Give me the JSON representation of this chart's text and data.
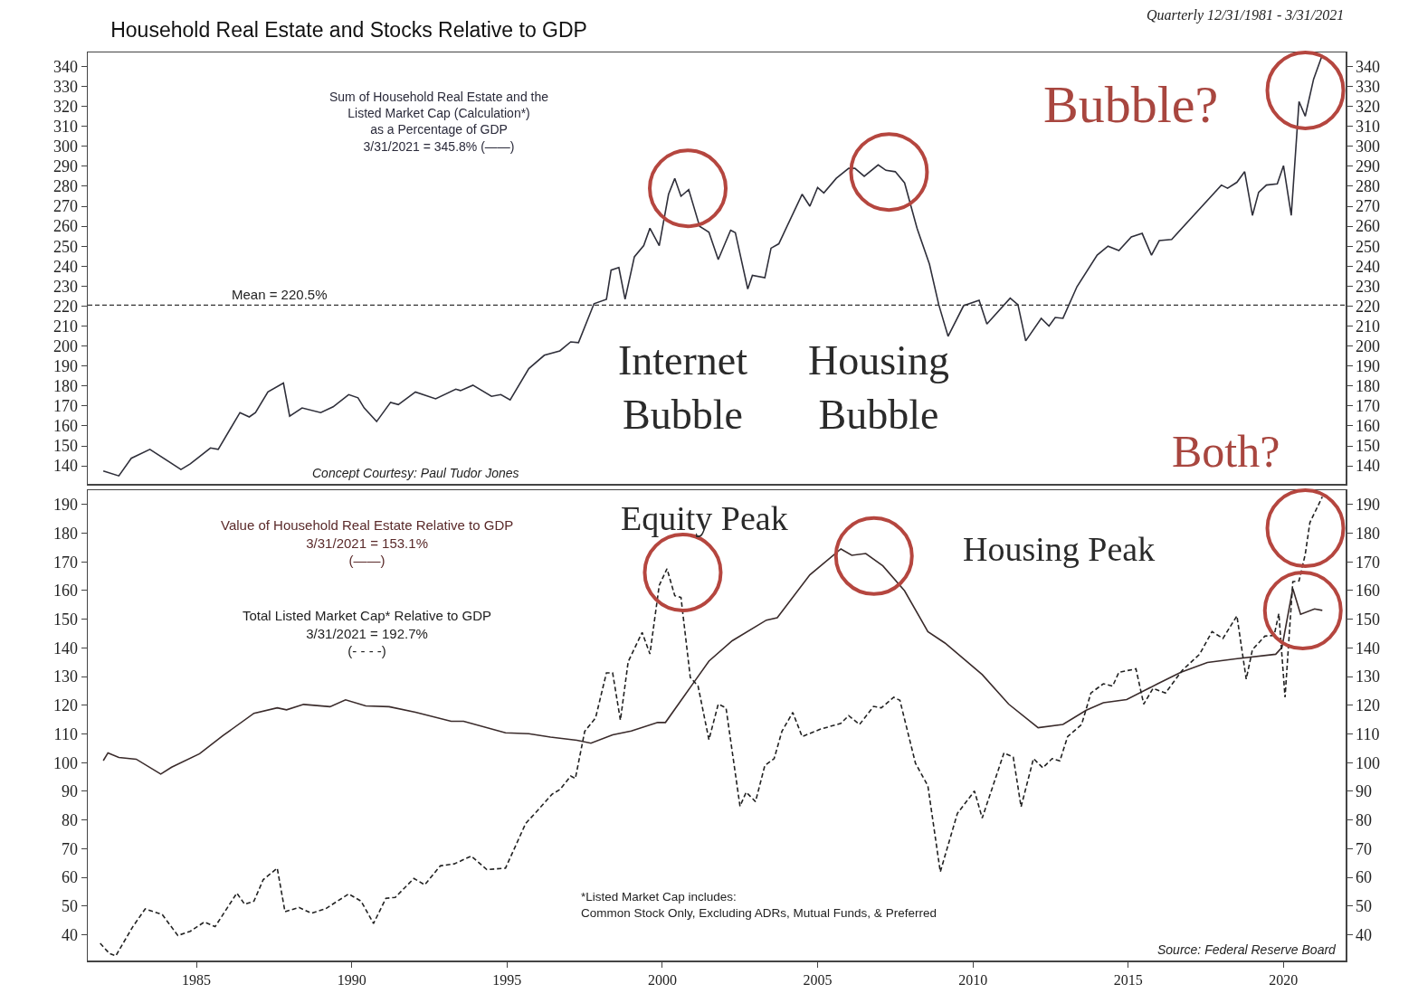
{
  "chart_data": [
    {
      "type": "line",
      "title": "Household Real Estate and Stocks Relative to GDP",
      "subtitle": "Quarterly 12/31/1981 - 3/31/2021",
      "tick_labels": "y",
      "xlim": [
        1981.5,
        2022.0
      ],
      "ylim": [
        131,
        347
      ],
      "yticks": [
        140,
        150,
        160,
        170,
        180,
        190,
        200,
        210,
        220,
        230,
        240,
        250,
        260,
        270,
        280,
        290,
        300,
        310,
        320,
        330,
        340
      ],
      "y2lim": [
        131,
        347
      ],
      "y2ticks": [
        140,
        150,
        160,
        170,
        180,
        190,
        200,
        210,
        220,
        230,
        240,
        250,
        260,
        270,
        280,
        290,
        300,
        310,
        320,
        330,
        340
      ],
      "ref_lines": [
        {
          "axis": "y",
          "value": 220.5,
          "label": "Mean = 220.5%",
          "line_style": "dashed",
          "color": "#333333"
        }
      ],
      "annotations": [
        "Sum of Household Real Estate and the\nListed Market Cap (Calculation*)\nas a Percentage of GDP\n3/31/2021 = 345.8% (——)",
        "Concept Courtesy: Paul Tudor Jones",
        "Internet\nBubble",
        "Housing\nBubble",
        "Bubble?",
        "Both?"
      ],
      "series": [
        {
          "color": "#2f2f3a",
          "line_style": "solid",
          "x": [
            1982.0,
            1982.5,
            1982.9,
            1983.5,
            1984.5,
            1984.8,
            1985.45,
            1985.7,
            1986.4,
            1986.7,
            1986.9,
            1987.3,
            1987.8,
            1988.0,
            1988.4,
            1989.0,
            1989.4,
            1989.9,
            1990.2,
            1990.4,
            1990.8,
            1991.25,
            1991.5,
            1992.05,
            1992.7,
            1993.35,
            1993.5,
            1993.9,
            1994.5,
            1994.8,
            1995.1,
            1995.7,
            1996.2,
            1996.7,
            1997.05,
            1997.3,
            1997.8,
            1998.2,
            1998.35,
            1998.6,
            1998.8,
            1999.1,
            1999.4,
            1999.6,
            1999.9,
            2000.2,
            2000.4,
            2000.6,
            2000.85,
            2001.2,
            2001.5,
            2001.8,
            2002.2,
            2002.35,
            2002.75,
            2002.9,
            2003.3,
            2003.5,
            2003.75,
            2004.5,
            2004.75,
            2005.0,
            2005.2,
            2005.6,
            2006.0,
            2006.2,
            2006.5,
            2006.95,
            2007.2,
            2007.5,
            2007.8,
            2008.2,
            2008.6,
            2008.9,
            2009.2,
            2009.7,
            2010.2,
            2010.45,
            2011.2,
            2011.45,
            2011.7,
            2012.2,
            2012.45,
            2012.65,
            2012.9,
            2013.35,
            2014.0,
            2014.35,
            2014.7,
            2015.1,
            2015.45,
            2015.75,
            2016.0,
            2016.4,
            2018.0,
            2018.2,
            2018.5,
            2018.75,
            2019.0,
            2019.2,
            2019.45,
            2019.8,
            2020.0,
            2020.25,
            2020.5,
            2020.7,
            2020.97,
            2021.25
          ],
          "values": [
            137.5,
            135,
            143.8,
            148.3,
            138.2,
            141,
            149,
            148.3,
            166.7,
            164.5,
            166.7,
            177,
            181.5,
            164.9,
            169,
            166.7,
            169.6,
            175.7,
            174.1,
            169,
            162.2,
            171.8,
            170.7,
            177,
            173.6,
            178.4,
            177.7,
            180.4,
            174.8,
            175.7,
            173,
            188.7,
            195.4,
            197.6,
            202.1,
            201.7,
            221.2,
            223.4,
            238,
            239.3,
            223.4,
            244.7,
            250.3,
            259,
            250.3,
            276,
            283.9,
            275,
            278.3,
            260,
            257,
            243.3,
            258,
            256.8,
            228.6,
            235.4,
            234.2,
            249,
            251.2,
            276,
            270,
            279.4,
            276.7,
            284,
            289,
            289,
            285,
            290.7,
            288,
            287.3,
            281.7,
            259,
            241,
            220.7,
            204.9,
            220.2,
            222.9,
            211,
            224,
            220.7,
            202.6,
            213.9,
            210,
            214.3,
            213.9,
            229.7,
            245.5,
            250,
            247.8,
            254.6,
            256.4,
            245.5,
            252.8,
            253.4,
            280.6,
            279,
            282,
            287.3,
            265.4,
            277,
            280.6,
            281.2,
            290.3,
            265.4,
            322.4,
            315.1,
            333.7,
            345.8
          ]
        }
      ]
    },
    {
      "type": "line",
      "xlim": [
        1981.5,
        2022.0
      ],
      "xticks": [
        1985,
        1990,
        1995,
        2000,
        2005,
        2010,
        2015,
        2020
      ],
      "ylim": [
        31,
        195
      ],
      "yticks": [
        40,
        50,
        60,
        70,
        80,
        90,
        100,
        110,
        120,
        130,
        140,
        150,
        160,
        170,
        180,
        190
      ],
      "y2lim": [
        31,
        195
      ],
      "y2ticks": [
        40,
        50,
        60,
        70,
        80,
        90,
        100,
        110,
        120,
        130,
        140,
        150,
        160,
        170,
        180,
        190
      ],
      "annotations": [
        "Value of Household Real Estate Relative to GDP\n3/31/2021 = 153.1%\n(——)",
        "Total Listed Market Cap* Relative to GDP\n3/31/2021 = 192.7%\n(- - - -)",
        "*Listed Market Cap includes:\nCommon Stock Only, Excluding ADRs, Mutual Funds, & Preferred",
        "Source: Federal Reserve Board",
        "Equity Peak",
        "Housing Peak"
      ],
      "series": [
        {
          "color": "#3a2b2b",
          "line_style": "solid",
          "x": [
            1982.0,
            1982.15,
            1982.5,
            1983.06,
            1983.85,
            1984.2,
            1985.1,
            1985.85,
            1986.85,
            1987.6,
            1987.9,
            1988.45,
            1989.3,
            1989.8,
            1990.45,
            1991.2,
            1992.05,
            1993.2,
            1993.6,
            1994.95,
            1995.7,
            1996.4,
            1997.25,
            1997.7,
            1998.4,
            1999.0,
            1999.85,
            2000.1,
            2000.95,
            2001.5,
            2002.25,
            2003.35,
            2003.7,
            2004.75,
            2005.75,
            2006.1,
            2006.55,
            2007.1,
            2007.8,
            2008.55,
            2009.1,
            2010.3,
            2011.15,
            2012.1,
            2012.9,
            2013.65,
            2014.2,
            2014.95,
            2015.95,
            2016.7,
            2017.55,
            2018.45,
            2019.75,
            2019.95,
            2020.3,
            2020.55,
            2021.0,
            2021.25
          ],
          "values": [
            100.7,
            103.4,
            101.8,
            101.2,
            96,
            98.4,
            103.1,
            109.4,
            117.2,
            119.1,
            118.4,
            120.3,
            119.5,
            121.9,
            119.8,
            119.5,
            117.6,
            114.4,
            114.4,
            110.4,
            110.1,
            108.9,
            107.8,
            106.8,
            109.7,
            111,
            114,
            114,
            127,
            135.4,
            142.5,
            149.7,
            150.5,
            165.5,
            174.5,
            172.3,
            172.9,
            168.6,
            159.9,
            145.7,
            141.7,
            130.7,
            120.4,
            112.2,
            113.3,
            118.3,
            120.9,
            122,
            127.5,
            131.5,
            134.9,
            136.2,
            137.8,
            140.2,
            160.7,
            151.7,
            153.6,
            153.1
          ]
        },
        {
          "color": "#222222",
          "line_style": "dashed",
          "x": [
            1981.9,
            1982.2,
            1982.4,
            1982.95,
            1983.35,
            1983.9,
            1984.4,
            1984.8,
            1985.25,
            1985.6,
            1986.3,
            1986.55,
            1986.85,
            1987.15,
            1987.6,
            1987.85,
            1988.3,
            1988.7,
            1989.15,
            1989.9,
            1990.3,
            1990.7,
            1991.1,
            1991.4,
            1992.0,
            1992.35,
            1992.85,
            1993.3,
            1993.85,
            1994.35,
            1994.95,
            1995.6,
            1996.0,
            1996.45,
            1996.7,
            1997.05,
            1997.2,
            1997.5,
            1997.85,
            1998.2,
            1998.4,
            1998.65,
            1998.9,
            1999.35,
            1999.6,
            1999.9,
            2000.15,
            2000.4,
            2000.6,
            2000.9,
            2001.15,
            2001.5,
            2001.8,
            2002.05,
            2002.5,
            2002.7,
            2003.0,
            2003.3,
            2003.6,
            2003.85,
            2004.2,
            2004.5,
            2005.1,
            2005.75,
            2006.0,
            2006.35,
            2006.8,
            2007.05,
            2007.45,
            2007.65,
            2008.15,
            2008.55,
            2008.95,
            2009.5,
            2010.05,
            2010.3,
            2011.0,
            2011.3,
            2011.55,
            2011.95,
            2012.25,
            2012.55,
            2012.8,
            2013.05,
            2013.5,
            2013.8,
            2014.2,
            2014.5,
            2014.7,
            2015.25,
            2015.5,
            2015.8,
            2016.2,
            2016.75,
            2017.3,
            2017.7,
            2018.05,
            2018.5,
            2018.8,
            2019.0,
            2019.4,
            2019.7,
            2019.85,
            2020.05,
            2020.3,
            2020.5,
            2020.7,
            2020.85,
            2021.25
          ],
          "values": [
            37,
            33.4,
            32.6,
            42.8,
            49,
            47,
            39.7,
            41.2,
            44.4,
            42.8,
            54.5,
            50.6,
            51.7,
            59.2,
            63.2,
            48,
            49.5,
            47.5,
            49,
            54.2,
            51.7,
            43.9,
            52.7,
            53,
            59.6,
            57.4,
            64,
            64.7,
            67.4,
            62.7,
            63.2,
            78.8,
            83.5,
            89,
            90.6,
            95.3,
            94.5,
            110.9,
            115.6,
            131.3,
            131.3,
            114.8,
            135.2,
            145.4,
            137.9,
            161.8,
            167.6,
            158.2,
            157.6,
            129.7,
            126.7,
            108,
            120.4,
            119.1,
            84.8,
            89.7,
            86.4,
            99,
            101.4,
            110.9,
            117.5,
            109.1,
            111.7,
            113.7,
            116.4,
            113.3,
            119.6,
            119.1,
            122.8,
            121.7,
            99.8,
            91.9,
            61.9,
            82.3,
            90.1,
            80.7,
            103.4,
            101.9,
            84.6,
            101.4,
            98.2,
            101.4,
            100.6,
            109.1,
            113.3,
            124.3,
            127.5,
            126.7,
            131.5,
            132.7,
            120.4,
            125.9,
            124.3,
            132.3,
            137.8,
            145.7,
            143.3,
            151.2,
            129.1,
            139.4,
            144.1,
            144.4,
            152,
            122.8,
            163.1,
            163.4,
            172.6,
            183.7,
            192.7
          ]
        }
      ]
    }
  ]
}
